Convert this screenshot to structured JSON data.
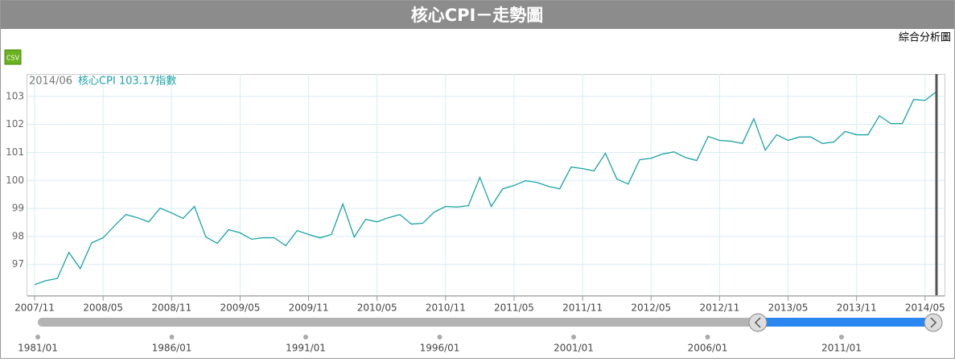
{
  "header": {
    "title": "核心CPI－走勢圖",
    "link": "綜合分析圖",
    "csv": "CSV"
  },
  "chart_data": {
    "type": "line",
    "categories": [
      "2007/11",
      null,
      null,
      null,
      null,
      null,
      "2008/05",
      null,
      null,
      null,
      null,
      null,
      "2008/11",
      null,
      null,
      null,
      null,
      null,
      "2009/05",
      null,
      null,
      null,
      null,
      null,
      "2009/11",
      null,
      null,
      null,
      null,
      null,
      "2010/05",
      null,
      null,
      null,
      null,
      null,
      "2010/11",
      null,
      null,
      null,
      null,
      null,
      "2011/05",
      null,
      null,
      null,
      null,
      null,
      "2011/11",
      null,
      null,
      null,
      null,
      null,
      "2012/05",
      null,
      null,
      null,
      null,
      null,
      "2012/11",
      null,
      null,
      null,
      null,
      null,
      "2013/05",
      null,
      null,
      null,
      null,
      null,
      "2013/11",
      null,
      null,
      null,
      null,
      null,
      "2014/05",
      null
    ],
    "series": [
      {
        "name": "核心CPI",
        "color": "#1aa3a3",
        "values": [
          96.28,
          96.42,
          96.5,
          97.43,
          96.85,
          97.77,
          97.95,
          98.38,
          98.78,
          98.67,
          98.52,
          99.01,
          98.84,
          98.64,
          99.07,
          97.98,
          97.75,
          98.24,
          98.13,
          97.9,
          97.95,
          97.95,
          97.67,
          98.21,
          98.07,
          97.95,
          98.07,
          99.16,
          97.98,
          98.61,
          98.52,
          98.67,
          98.78,
          98.44,
          98.47,
          98.87,
          99.07,
          99.05,
          99.1,
          100.11,
          99.07,
          99.7,
          99.82,
          99.99,
          99.93,
          99.79,
          99.7,
          100.48,
          100.42,
          100.34,
          100.97,
          100.05,
          99.87,
          100.74,
          100.79,
          100.94,
          101.02,
          100.82,
          100.71,
          101.57,
          101.43,
          101.4,
          101.32,
          102.2,
          101.08,
          101.63,
          101.43,
          101.55,
          101.55,
          101.32,
          101.37,
          101.75,
          101.63,
          101.63,
          102.31,
          102.03,
          102.03,
          102.89,
          102.86,
          103.17
        ]
      }
    ],
    "ylim": [
      95.9,
      103.8
    ],
    "yticks": [
      97,
      98,
      99,
      100,
      101,
      102,
      103
    ],
    "grid": true,
    "tooltip": {
      "date": "2014/06",
      "label": "核心CPI 103.17指數"
    },
    "navigator": {
      "labels": [
        "1981/01",
        "1986/01",
        "1991/01",
        "1996/01",
        "2001/01",
        "2006/01",
        "2011/01"
      ]
    }
  }
}
